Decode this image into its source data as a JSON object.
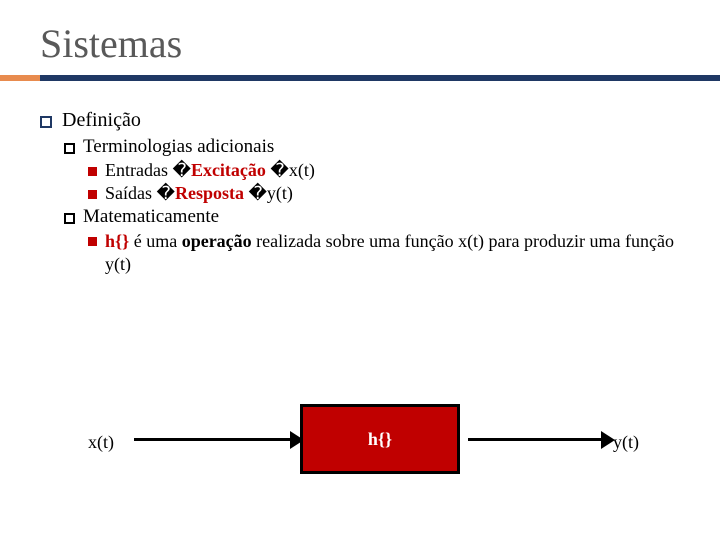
{
  "title": "Sistemas",
  "accent": {
    "left_color": "#e88b4e",
    "right_color": "#1f3864"
  },
  "content": {
    "l1": "Definição",
    "l2a": "Terminologias adicionais",
    "l3a_prefix": "Entradas  �",
    "l3a_bold": "Excitação",
    "l3a_suffix": "  �x(t)",
    "l3b_prefix": "Saídas  �",
    "l3b_bold": "Resposta",
    "l3b_suffix": "  �y(t)",
    "l2b": "Matematicamente",
    "l3c_bold1": "h{}",
    "l3c_mid1": " é uma ",
    "l3c_bold2": "operação",
    "l3c_mid2": " realizada sobre uma função x(t) para produzir uma função y(t)"
  },
  "diagram": {
    "input_label": "x(t)",
    "output_label": "y(t)",
    "box_label": "h{}",
    "box_fill": "#c00000",
    "box_border": "#000000",
    "arrow_color": "#000000"
  }
}
